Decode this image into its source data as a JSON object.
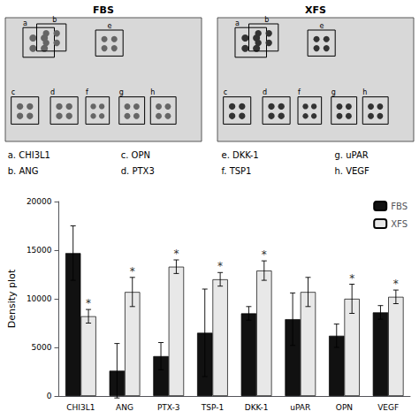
{
  "chart_data": {
    "type": "bar",
    "categories": [
      "CHI3L1",
      "ANG",
      "PTX-3",
      "TSP-1",
      "DKK-1",
      "uPAR",
      "OPN",
      "VEGF"
    ],
    "series": [
      {
        "name": "FBS",
        "color": "#111111",
        "values": [
          14700,
          2600,
          4100,
          6500,
          8500,
          7900,
          6200,
          8600
        ],
        "errors": [
          2800,
          2800,
          1400,
          4500,
          700,
          2700,
          1200,
          700
        ]
      },
      {
        "name": "XFS",
        "color": "#e8e8e8",
        "values": [
          8200,
          10700,
          13300,
          12000,
          12900,
          10700,
          10000,
          10200
        ],
        "errors": [
          700,
          1500,
          700,
          700,
          1000,
          1500,
          1500,
          700
        ],
        "significance": [
          true,
          true,
          true,
          true,
          true,
          false,
          true,
          true
        ],
        "significance_label": "*"
      }
    ],
    "ylabel": "Density plot",
    "ylim": [
      0,
      20000
    ],
    "yticks": [
      0,
      5000,
      10000,
      15000,
      20000
    ],
    "grid": false,
    "legend": "upper right",
    "panel_titles": [
      "FBS",
      "XFS"
    ],
    "box_labels": [
      "a",
      "b",
      "e",
      "c",
      "d",
      "f",
      "g",
      "h"
    ],
    "annotations": [
      "a. CHI3L1",
      "b. ANG",
      "c. OPN",
      "d. PTX3",
      "e. DKK-1",
      "f. TSP1",
      "g. uPAR",
      "h. VEGF"
    ]
  }
}
